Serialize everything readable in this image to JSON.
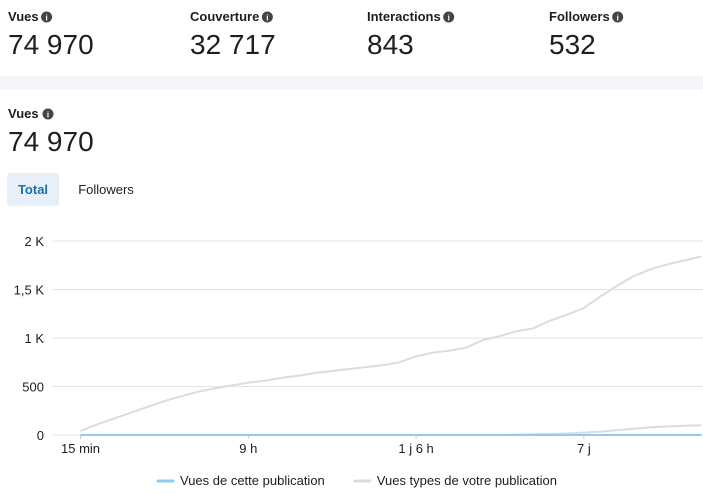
{
  "metrics": [
    {
      "label": "Vues",
      "value": "74 970"
    },
    {
      "label": "Couverture",
      "value": "32 717"
    },
    {
      "label": "Interactions",
      "value": "843"
    },
    {
      "label": "Followers",
      "value": "532"
    }
  ],
  "detail": {
    "label": "Vues",
    "value": "74 970"
  },
  "tabs": [
    "Total",
    "Followers"
  ],
  "chart_data": {
    "type": "line",
    "x": [
      0,
      1,
      2,
      3,
      4,
      5,
      6,
      7,
      8,
      9,
      10,
      11,
      12,
      13,
      14,
      15,
      16,
      17,
      18,
      19,
      20,
      21,
      22,
      23,
      24,
      25,
      26,
      27,
      28,
      29,
      30,
      31,
      32,
      33,
      34,
      35,
      36,
      37
    ],
    "xlim": [
      -1.7,
      37.1
    ],
    "xticks": [
      {
        "value": 0,
        "label": "15 min"
      },
      {
        "value": 10,
        "label": "9 h"
      },
      {
        "value": 20,
        "label": "1 j 6 h"
      },
      {
        "value": 30,
        "label": "7 j"
      }
    ],
    "ylim": [
      0,
      2000
    ],
    "yticks": [
      0,
      500,
      {
        "value": 1000,
        "label": "1 K"
      },
      {
        "value": 1500,
        "label": "1,5 K"
      },
      {
        "value": 2000,
        "label": "2 K"
      }
    ],
    "grid": true,
    "series": [
      {
        "color": "#dcdcde",
        "values": [
          0,
          0,
          0,
          0,
          0,
          0,
          0,
          0,
          0,
          0,
          0,
          0,
          0,
          0,
          0,
          0,
          0,
          0,
          0,
          0,
          0,
          0,
          0,
          0,
          0,
          0,
          5,
          8,
          10,
          15,
          25,
          35,
          50,
          65,
          80,
          88,
          95,
          100
        ]
      },
      {
        "name": "Vues types de votre publication",
        "color": "#dcdcde",
        "values": [
          40,
          110,
          170,
          230,
          290,
          350,
          400,
          445,
          480,
          510,
          540,
          560,
          590,
          610,
          640,
          660,
          680,
          700,
          720,
          750,
          810,
          850,
          870,
          900,
          980,
          1020,
          1070,
          1100,
          1180,
          1240,
          1310,
          1430,
          1540,
          1640,
          1710,
          1760,
          1800,
          1840
        ]
      },
      {
        "name": "Vues de cette publication",
        "color": "#8fcdf0",
        "values": [
          0,
          0,
          0,
          0,
          0,
          0,
          0,
          0,
          0,
          0,
          0,
          0,
          0,
          0,
          0,
          0,
          0,
          0,
          0,
          0,
          0,
          0,
          0,
          0,
          0,
          0,
          0,
          0,
          0,
          0,
          0,
          0,
          0,
          0,
          0,
          0,
          0,
          0
        ]
      }
    ]
  }
}
